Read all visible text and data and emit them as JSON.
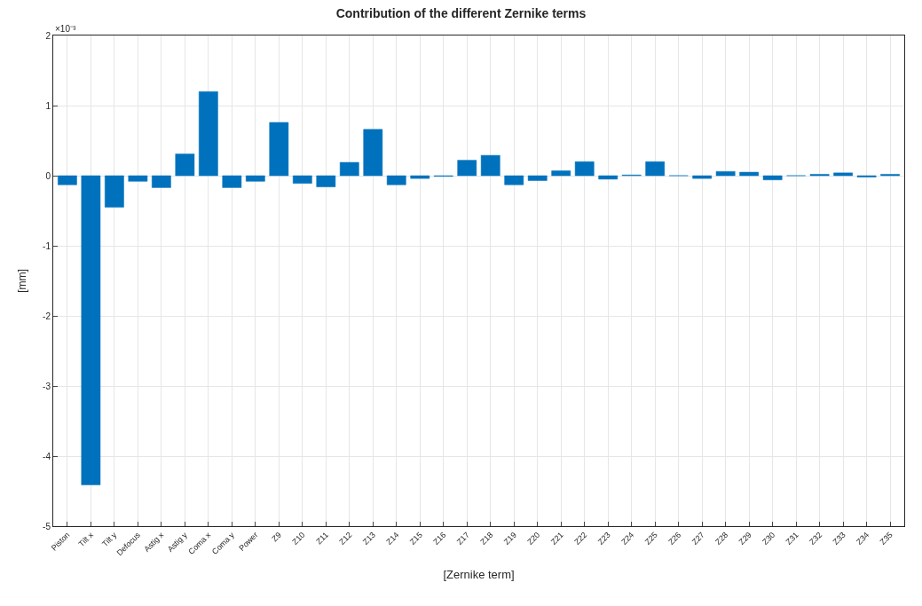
{
  "chart_data": {
    "type": "bar",
    "title": "Contribution of the different Zernike terms",
    "xlabel": "[Zernike term]",
    "ylabel": "[mm]",
    "annotations": [
      "×10⁻³"
    ],
    "categories": [
      "Piston",
      "Tilt x",
      "Tilt y",
      "Defocus",
      "Astig x",
      "Astig y",
      "Coma x",
      "Coma y",
      "Power",
      "Z9",
      "Z10",
      "Z11",
      "Z12",
      "Z13",
      "Z14",
      "Z15",
      "Z16",
      "Z17",
      "Z18",
      "Z19",
      "Z20",
      "Z21",
      "Z22",
      "Z23",
      "Z24",
      "Z25",
      "Z26",
      "Z27",
      "Z28",
      "Z29",
      "Z30",
      "Z31",
      "Z32",
      "Z33",
      "Z34",
      "Z35"
    ],
    "values": [
      -0.13,
      -4.41,
      -0.45,
      -0.08,
      -0.17,
      0.31,
      1.2,
      -0.17,
      -0.08,
      0.76,
      -0.11,
      -0.16,
      0.19,
      0.66,
      -0.13,
      -0.04,
      -0.01,
      0.22,
      0.29,
      -0.13,
      -0.07,
      0.07,
      0.2,
      -0.05,
      0.01,
      0.2,
      0.0,
      -0.04,
      0.06,
      0.05,
      -0.06,
      0.0,
      0.02,
      0.04,
      -0.02,
      0.02
    ],
    "color": "#0072bd",
    "ylim": [
      -5,
      2
    ],
    "yticks": [
      -5,
      -4,
      -3,
      -2,
      -1,
      0,
      1,
      2
    ],
    "grid": true
  }
}
